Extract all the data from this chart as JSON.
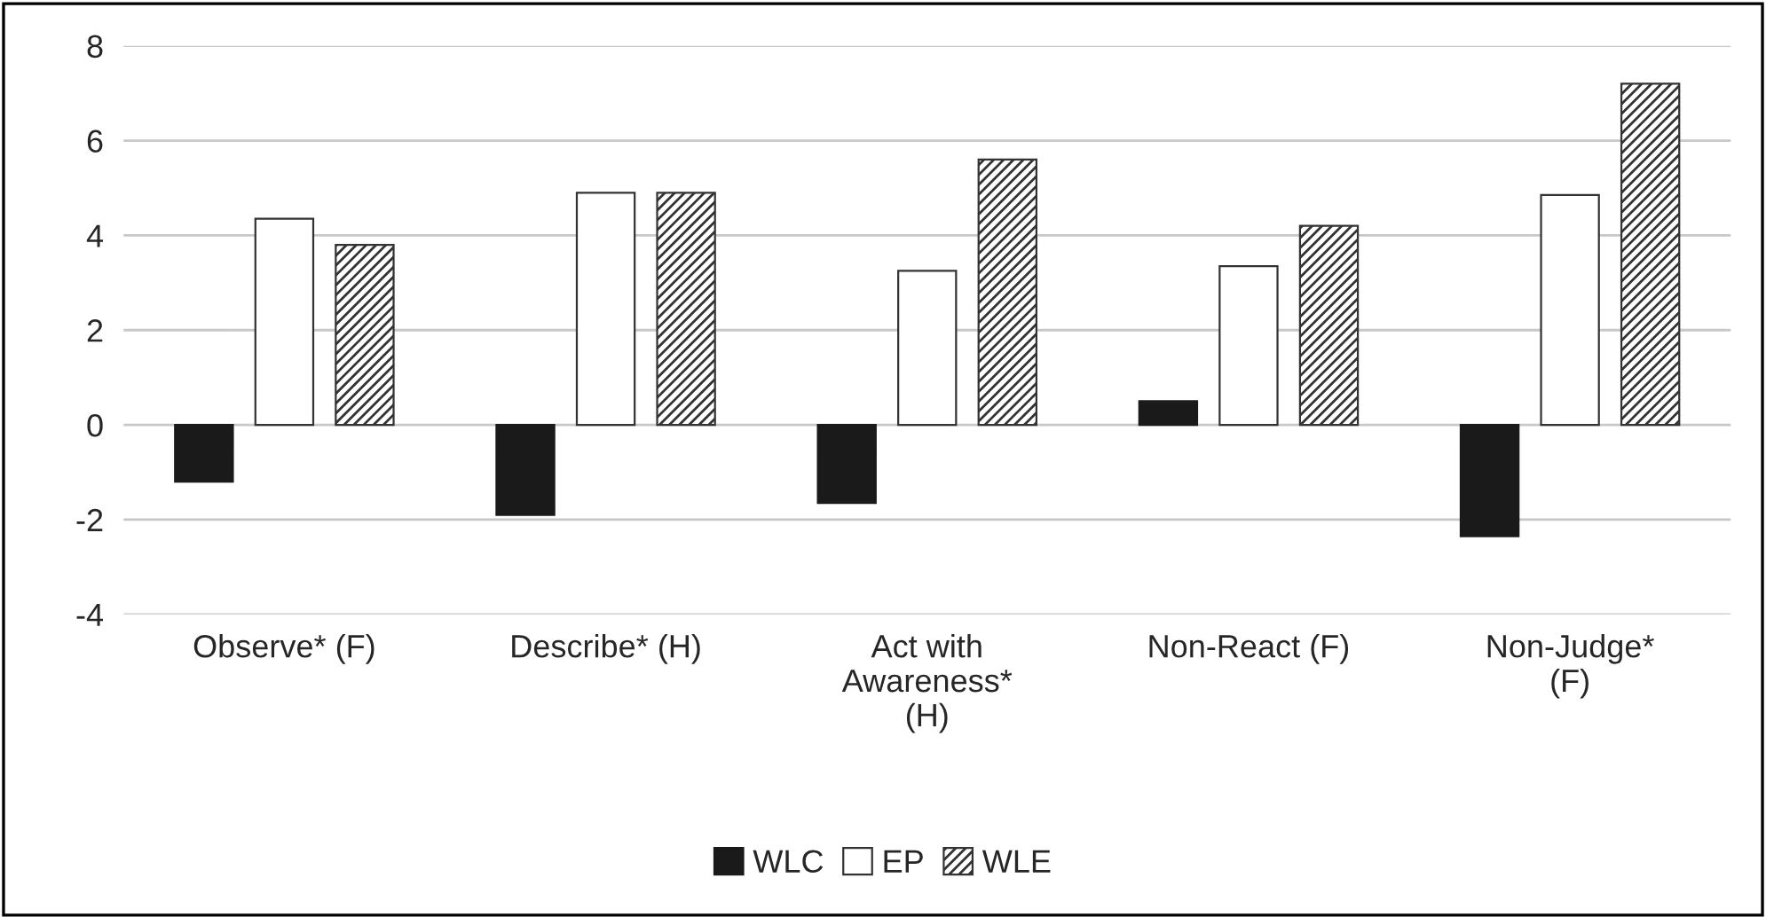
{
  "chart_data": {
    "type": "bar",
    "categories": [
      "Observe* (F)",
      "Describe* (H)",
      "Act with Awareness* (H)",
      "Non-React (F)",
      "Non-Judge* (F)"
    ],
    "series": [
      {
        "name": "WLC",
        "color": "#1a1a1a",
        "values": [
          -1.2,
          -1.9,
          -1.65,
          0.5,
          -2.35
        ]
      },
      {
        "name": "EP",
        "color": "#ffffff",
        "values": [
          4.35,
          4.9,
          3.25,
          3.35,
          4.85
        ]
      },
      {
        "name": "WLE",
        "color": "#333333",
        "values": [
          3.8,
          4.9,
          5.6,
          4.2,
          7.2
        ]
      }
    ],
    "ylim": [
      -4,
      8
    ],
    "yticks": [
      {
        "value": -4,
        "label": "-4"
      },
      {
        "value": -2,
        "label": "-2"
      },
      0,
      2,
      4,
      6,
      8
    ],
    "grid": "y",
    "legend": "bottom"
  }
}
